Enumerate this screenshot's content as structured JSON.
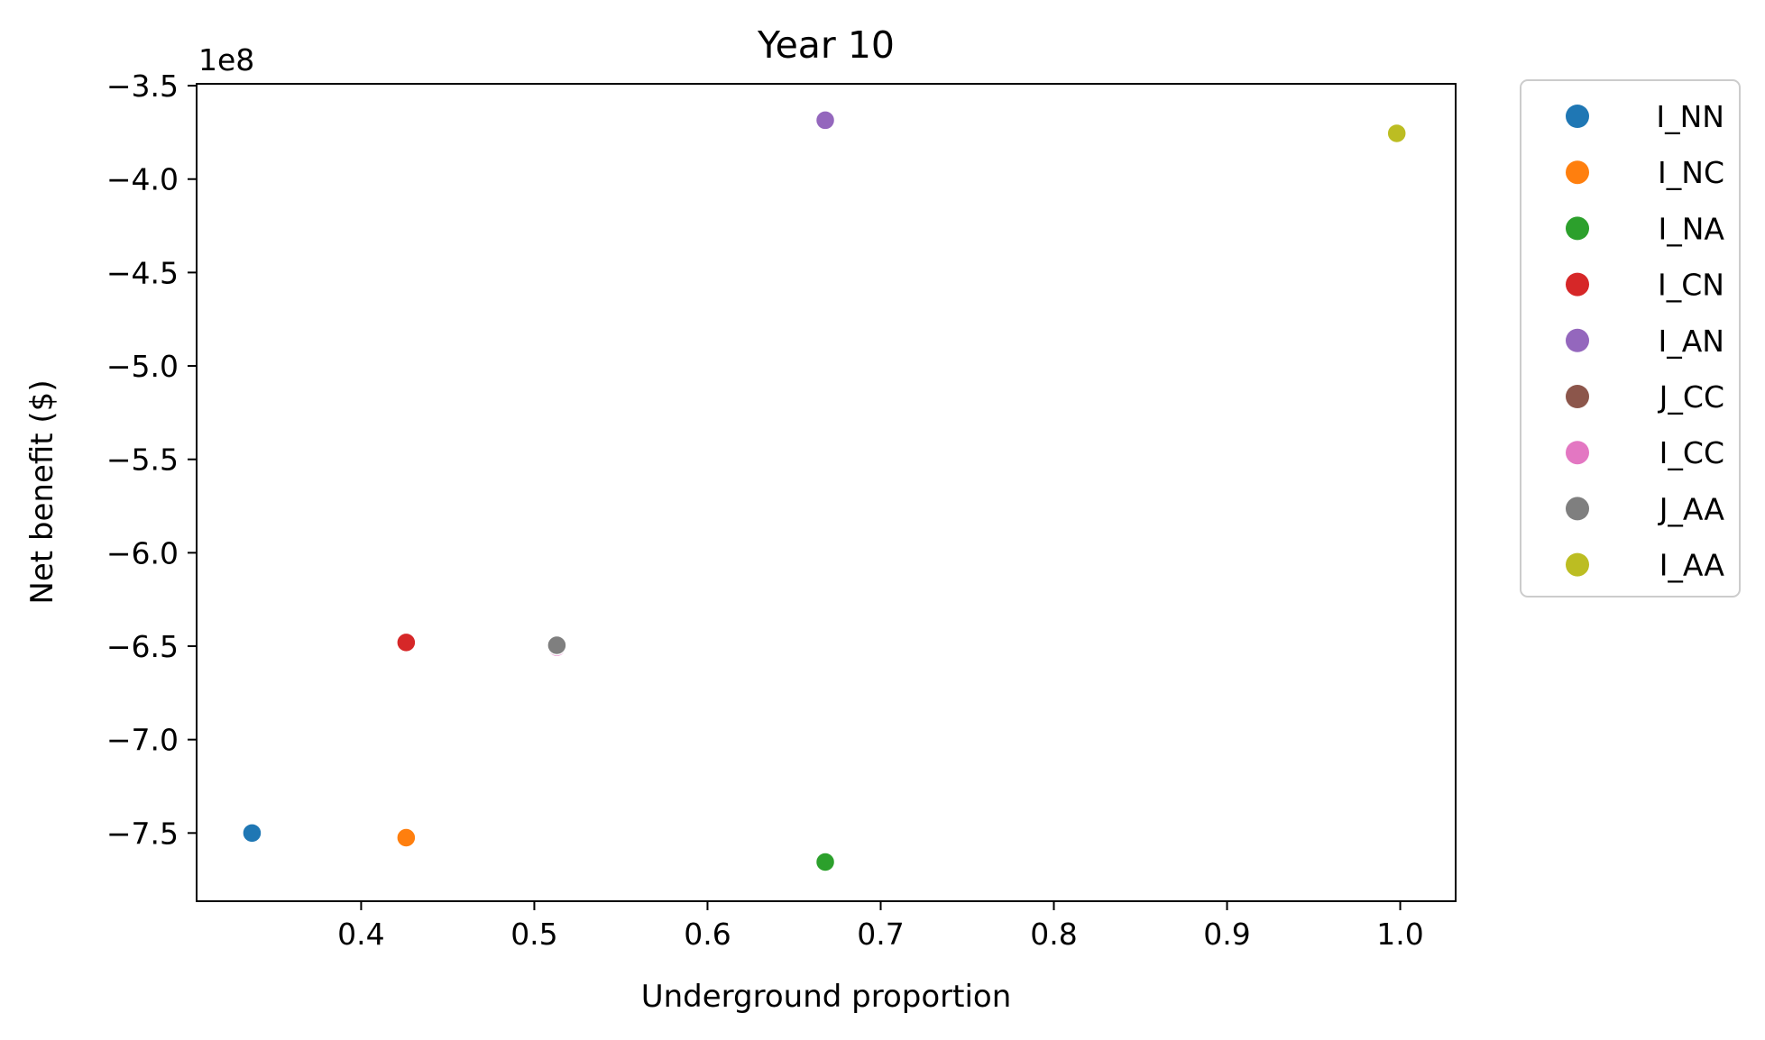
{
  "chart_data": {
    "type": "scatter",
    "title": "Year 10",
    "xlabel": "Underground proportion",
    "ylabel": "Net benefit ($)",
    "y_offset_label": "1e8",
    "y_scale": 100000000,
    "xlim": [
      0.305,
      1.032
    ],
    "ylim": [
      -7.865,
      -3.49
    ],
    "x_ticks": [
      0.4,
      0.5,
      0.6,
      0.7,
      0.8,
      0.9,
      1.0
    ],
    "x_tick_labels": [
      "0.4",
      "0.5",
      "0.6",
      "0.7",
      "0.8",
      "0.9",
      "1.0"
    ],
    "y_ticks": [
      -3.5,
      -4.0,
      -4.5,
      -5.0,
      -5.5,
      -6.0,
      -6.5,
      -7.0,
      -7.5
    ],
    "y_tick_labels": [
      "−3.5",
      "−4.0",
      "−4.5",
      "−5.0",
      "−5.5",
      "−6.0",
      "−6.5",
      "−7.0",
      "−7.5"
    ],
    "grid": false,
    "legend_position": "outside-right",
    "series": [
      {
        "name": "I_NN",
        "color": "#1f77b4",
        "x": 0.337,
        "y": -7.5
      },
      {
        "name": "I_NC",
        "color": "#ff7f0e",
        "x": 0.426,
        "y": -7.525
      },
      {
        "name": "I_NA",
        "color": "#2ca02c",
        "x": 0.668,
        "y": -7.655
      },
      {
        "name": "I_CN",
        "color": "#d62728",
        "x": 0.426,
        "y": -6.48
      },
      {
        "name": "I_AN",
        "color": "#9467bd",
        "x": 0.668,
        "y": -3.685
      },
      {
        "name": "J_CC",
        "color": "#8c564b",
        "x": 0.513,
        "y": -6.49
      },
      {
        "name": "I_CC",
        "color": "#e377c2",
        "x": 0.513,
        "y": -6.505
      },
      {
        "name": "J_AA",
        "color": "#7f7f7f",
        "x": 0.513,
        "y": -6.495
      },
      {
        "name": "I_AA",
        "color": "#bcbd22",
        "x": 0.998,
        "y": -3.755
      }
    ]
  }
}
